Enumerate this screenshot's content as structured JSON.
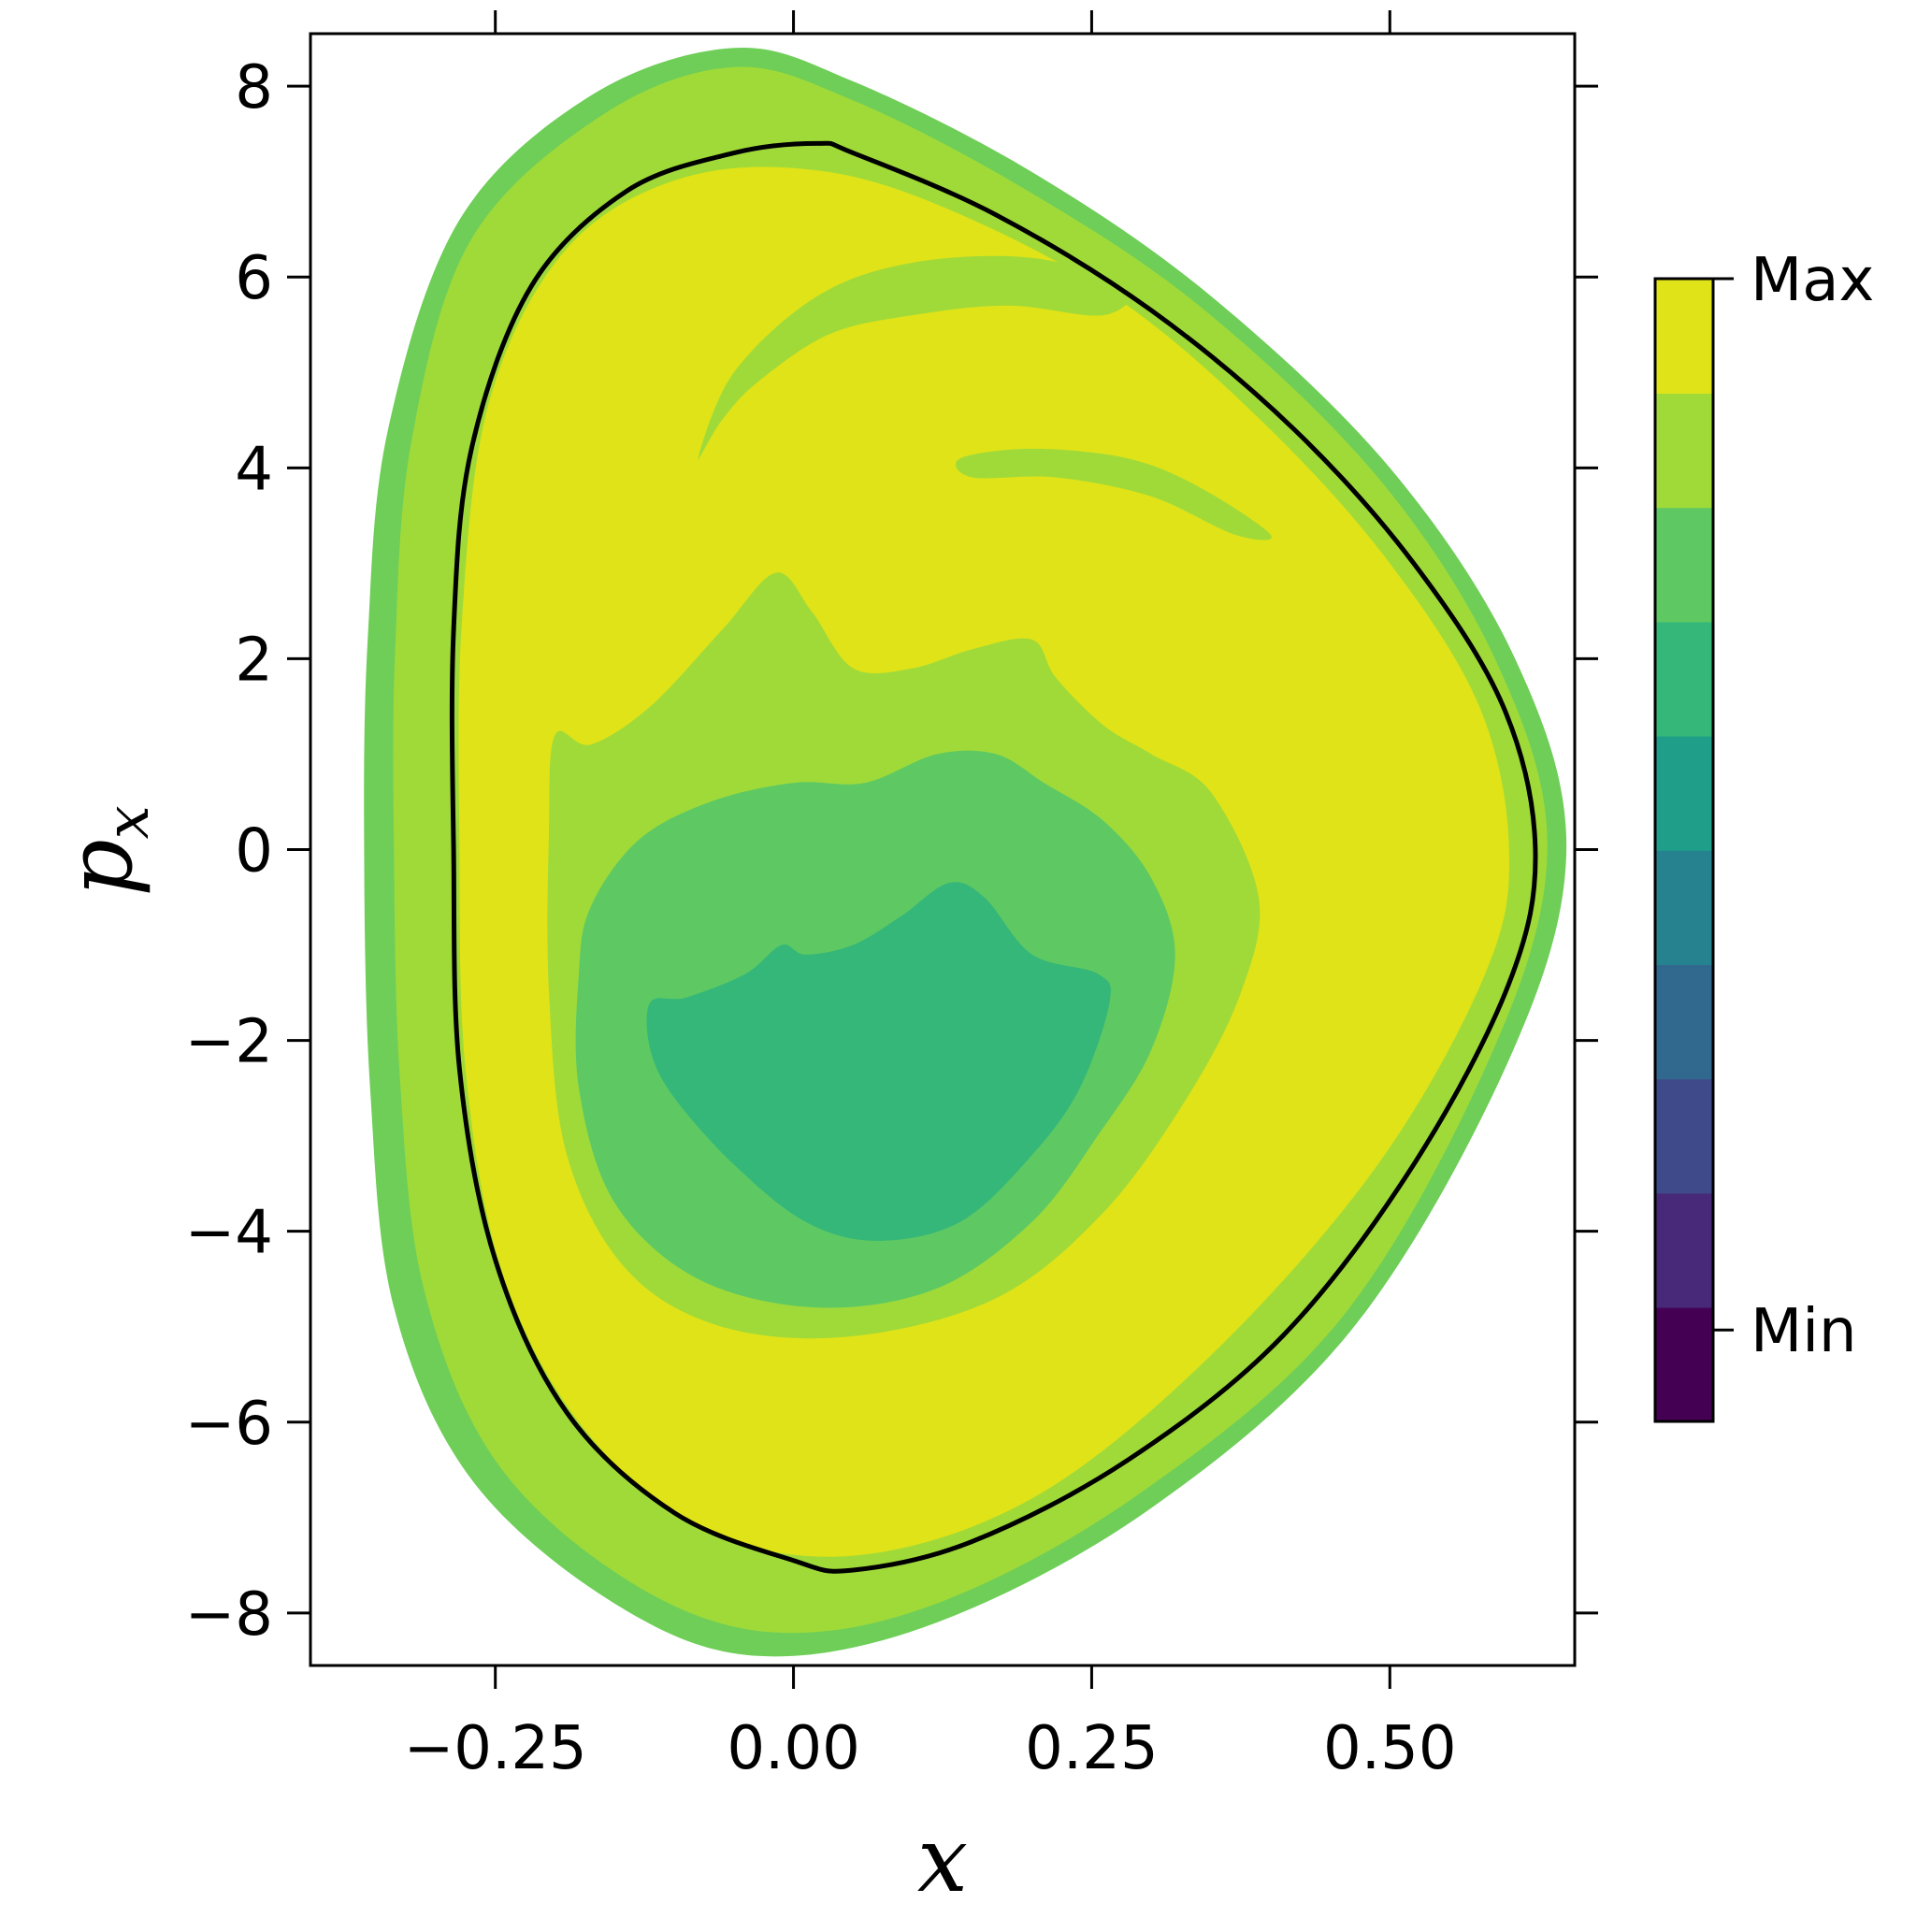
{
  "chart_data": {
    "type": "heatmap",
    "title": "",
    "xlabel": "x",
    "ylabel": "p_x",
    "xlim": [
      -0.405,
      0.655
    ],
    "ylim": [
      -8.55,
      8.55
    ],
    "xticks": [
      {
        "value": -0.25,
        "label": "−0.25"
      },
      {
        "value": 0.0,
        "label": "0.00"
      },
      {
        "value": 0.25,
        "label": "0.25"
      },
      {
        "value": 0.5,
        "label": "0.50"
      }
    ],
    "yticks": [
      {
        "value": 8,
        "label": "8"
      },
      {
        "value": 6,
        "label": "6"
      },
      {
        "value": 4,
        "label": "4"
      },
      {
        "value": 2,
        "label": "2"
      },
      {
        "value": 0,
        "label": "0"
      },
      {
        "value": -2,
        "label": "−2"
      },
      {
        "value": -4,
        "label": "−4"
      },
      {
        "value": -6,
        "label": "−6"
      },
      {
        "value": -8,
        "label": "−8"
      }
    ],
    "grid": false,
    "colormap": "viridis",
    "colorbar": {
      "levels": [
        "#440154",
        "#482878",
        "#3e4a89",
        "#31688e",
        "#26828e",
        "#1f9e89",
        "#35b779",
        "#5ec962",
        "#a0da39",
        "#dfe318"
      ],
      "tick_labels": [
        {
          "label": "Max",
          "level": 1.0
        },
        {
          "label": "Min",
          "level": 0.08
        }
      ]
    },
    "regions": [
      {
        "name": "outer-band",
        "color": "#6ece58",
        "points": [
          [
            -0.36,
            0.0
          ],
          [
            -0.355,
            -2.5
          ],
          [
            -0.335,
            -4.8
          ],
          [
            -0.27,
            -6.6
          ],
          [
            -0.15,
            -7.9
          ],
          [
            -0.03,
            -8.45
          ],
          [
            0.12,
            -8.1
          ],
          [
            0.3,
            -6.9
          ],
          [
            0.47,
            -5.0
          ],
          [
            0.6,
            -2.2
          ],
          [
            0.648,
            0.0
          ],
          [
            0.605,
            2.0
          ],
          [
            0.5,
            4.0
          ],
          [
            0.35,
            5.8
          ],
          [
            0.2,
            7.1
          ],
          [
            0.05,
            8.05
          ],
          [
            -0.05,
            8.4
          ],
          [
            -0.17,
            7.9
          ],
          [
            -0.28,
            6.6
          ],
          [
            -0.34,
            4.4
          ],
          [
            -0.357,
            2.2
          ]
        ]
      },
      {
        "name": "chaotic-sea",
        "color": "#a0da39",
        "points": [
          [
            -0.335,
            0.0
          ],
          [
            -0.33,
            -2.4
          ],
          [
            -0.31,
            -4.6
          ],
          [
            -0.25,
            -6.4
          ],
          [
            -0.14,
            -7.65
          ],
          [
            -0.02,
            -8.2
          ],
          [
            0.12,
            -7.9
          ],
          [
            0.29,
            -6.75
          ],
          [
            0.46,
            -4.9
          ],
          [
            0.585,
            -2.15
          ],
          [
            0.632,
            0.0
          ],
          [
            0.59,
            1.95
          ],
          [
            0.49,
            3.9
          ],
          [
            0.34,
            5.7
          ],
          [
            0.19,
            6.95
          ],
          [
            0.05,
            7.85
          ],
          [
            -0.05,
            8.2
          ],
          [
            -0.16,
            7.7
          ],
          [
            -0.27,
            6.4
          ],
          [
            -0.32,
            4.3
          ],
          [
            -0.334,
            2.1
          ]
        ]
      },
      {
        "name": "regular-island",
        "color": "#dfe318",
        "points": [
          [
            -0.28,
            0.0
          ],
          [
            -0.275,
            -2.3
          ],
          [
            -0.245,
            -4.4
          ],
          [
            -0.18,
            -6.0
          ],
          [
            -0.08,
            -7.1
          ],
          [
            0.05,
            -7.4
          ],
          [
            0.2,
            -6.8
          ],
          [
            0.35,
            -5.3
          ],
          [
            0.49,
            -3.3
          ],
          [
            0.58,
            -1.3
          ],
          [
            0.6,
            0.0
          ],
          [
            0.575,
            1.5
          ],
          [
            0.5,
            3.0
          ],
          [
            0.4,
            4.4
          ],
          [
            0.28,
            5.7
          ],
          [
            0.15,
            6.6
          ],
          [
            0.03,
            7.1
          ],
          [
            -0.09,
            7.05
          ],
          [
            -0.19,
            6.3
          ],
          [
            -0.255,
            4.7
          ],
          [
            -0.278,
            2.4
          ]
        ]
      },
      {
        "name": "contour-level-8",
        "color": "#a0da39",
        "points": [
          [
            -0.2,
            1.2
          ],
          [
            -0.17,
            1.1
          ],
          [
            -0.12,
            1.5
          ],
          [
            -0.06,
            2.3
          ],
          [
            -0.015,
            2.9
          ],
          [
            0.015,
            2.5
          ],
          [
            0.05,
            1.9
          ],
          [
            0.1,
            1.9
          ],
          [
            0.15,
            2.1
          ],
          [
            0.2,
            2.2
          ],
          [
            0.22,
            1.8
          ],
          [
            0.26,
            1.3
          ],
          [
            0.3,
            1.0
          ],
          [
            0.35,
            0.6
          ],
          [
            0.39,
            -0.5
          ],
          [
            0.375,
            -1.5
          ],
          [
            0.33,
            -2.6
          ],
          [
            0.26,
            -3.8
          ],
          [
            0.17,
            -4.7
          ],
          [
            0.05,
            -5.1
          ],
          [
            -0.06,
            -5.0
          ],
          [
            -0.14,
            -4.4
          ],
          [
            -0.19,
            -3.2
          ],
          [
            -0.205,
            -1.5
          ],
          [
            -0.205,
            0.2
          ]
        ]
      },
      {
        "name": "contour-level-7",
        "color": "#5ec962",
        "points": [
          [
            -0.17,
            -0.6
          ],
          [
            -0.13,
            0.1
          ],
          [
            -0.07,
            0.5
          ],
          [
            0.0,
            0.7
          ],
          [
            0.06,
            0.7
          ],
          [
            0.12,
            1.0
          ],
          [
            0.17,
            1.0
          ],
          [
            0.21,
            0.7
          ],
          [
            0.26,
            0.3
          ],
          [
            0.3,
            -0.3
          ],
          [
            0.32,
            -1.1
          ],
          [
            0.3,
            -2.1
          ],
          [
            0.255,
            -3.0
          ],
          [
            0.2,
            -3.9
          ],
          [
            0.12,
            -4.6
          ],
          [
            0.02,
            -4.8
          ],
          [
            -0.08,
            -4.5
          ],
          [
            -0.15,
            -3.7
          ],
          [
            -0.18,
            -2.5
          ],
          [
            -0.18,
            -1.3
          ]
        ]
      },
      {
        "name": "contour-level-6",
        "color": "#35b779",
        "points": [
          [
            -0.12,
            -1.6
          ],
          [
            -0.09,
            -1.55
          ],
          [
            -0.04,
            -1.3
          ],
          [
            -0.01,
            -1.0
          ],
          [
            0.01,
            -1.1
          ],
          [
            0.05,
            -1.0
          ],
          [
            0.09,
            -0.7
          ],
          [
            0.13,
            -0.35
          ],
          [
            0.16,
            -0.5
          ],
          [
            0.2,
            -1.1
          ],
          [
            0.255,
            -1.3
          ],
          [
            0.265,
            -1.6
          ],
          [
            0.24,
            -2.5
          ],
          [
            0.2,
            -3.2
          ],
          [
            0.14,
            -3.9
          ],
          [
            0.07,
            -4.1
          ],
          [
            0.01,
            -3.9
          ],
          [
            -0.05,
            -3.3
          ],
          [
            -0.1,
            -2.6
          ],
          [
            -0.12,
            -2.1
          ]
        ]
      }
    ],
    "filaments": [
      {
        "color": "#a0da39",
        "points": [
          [
            -0.08,
            4.1
          ],
          [
            -0.05,
            5.0
          ],
          [
            0.02,
            5.8
          ],
          [
            0.1,
            6.15
          ],
          [
            0.2,
            6.2
          ],
          [
            0.28,
            5.9
          ],
          [
            0.26,
            5.6
          ],
          [
            0.18,
            5.7
          ],
          [
            0.1,
            5.6
          ],
          [
            0.03,
            5.4
          ],
          [
            -0.03,
            4.9
          ],
          [
            -0.06,
            4.5
          ]
        ]
      },
      {
        "color": "#a0da39",
        "points": [
          [
            0.14,
            4.1
          ],
          [
            0.2,
            4.2
          ],
          [
            0.28,
            4.1
          ],
          [
            0.34,
            3.8
          ],
          [
            0.4,
            3.3
          ],
          [
            0.37,
            3.3
          ],
          [
            0.3,
            3.7
          ],
          [
            0.22,
            3.9
          ],
          [
            0.15,
            3.9
          ]
        ]
      }
    ],
    "boundary_curve": {
      "color": "#000000",
      "points": [
        [
          -0.285,
          0.0
        ],
        [
          -0.28,
          -2.3
        ],
        [
          -0.25,
          -4.3
        ],
        [
          -0.19,
          -5.9
        ],
        [
          -0.1,
          -6.95
        ],
        [
          0.0,
          -7.45
        ],
        [
          0.05,
          -7.55
        ],
        [
          0.15,
          -7.25
        ],
        [
          0.28,
          -6.4
        ],
        [
          0.41,
          -5.1
        ],
        [
          0.52,
          -3.3
        ],
        [
          0.6,
          -1.4
        ],
        [
          0.622,
          0.0
        ],
        [
          0.595,
          1.5
        ],
        [
          0.52,
          3.0
        ],
        [
          0.42,
          4.4
        ],
        [
          0.3,
          5.65
        ],
        [
          0.17,
          6.65
        ],
        [
          0.05,
          7.3
        ],
        [
          0.02,
          7.4
        ],
        [
          -0.05,
          7.3
        ],
        [
          -0.14,
          6.9
        ],
        [
          -0.22,
          5.9
        ],
        [
          -0.27,
          4.2
        ],
        [
          -0.285,
          2.3
        ]
      ]
    }
  }
}
